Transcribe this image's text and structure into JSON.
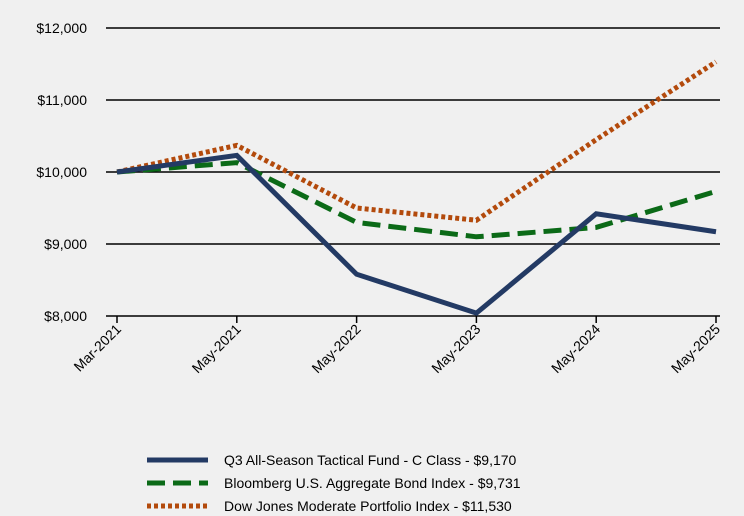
{
  "chart_data": {
    "type": "line",
    "title": "",
    "xlabel": "",
    "ylabel": "",
    "categories": [
      "Mar-2021",
      "May-2021",
      "May-2022",
      "May-2023",
      "May-2024",
      "May-2025"
    ],
    "y_ticks": [
      "$8,000",
      "$9,000",
      "$10,000",
      "$11,000",
      "$12,000"
    ],
    "ylim": [
      8000,
      12000
    ],
    "y_tick_values": [
      8000,
      9000,
      10000,
      11000,
      12000
    ],
    "grid": true,
    "legend_position": "bottom",
    "series": [
      {
        "name": "Q3 All-Season Tactical Fund - C Class - $9,170",
        "values": [
          10000,
          10230,
          8580,
          8040,
          9420,
          9170
        ],
        "color": "#233a64",
        "style": "solid"
      },
      {
        "name": "Bloomberg U.S. Aggregate Bond Index - $9,731",
        "values": [
          10000,
          10130,
          9300,
          9100,
          9230,
          9731
        ],
        "color": "#0b6a17",
        "style": "dashed"
      },
      {
        "name": "Dow Jones Moderate Portfolio Index - $11,530",
        "values": [
          10000,
          10370,
          9500,
          9330,
          10450,
          11530
        ],
        "color": "#b34a0c",
        "style": "dotted"
      }
    ]
  }
}
